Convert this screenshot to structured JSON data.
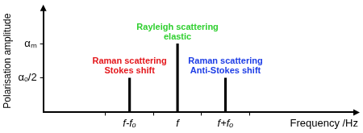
{
  "chart_data": {
    "type": "bar",
    "x_label": "Frequency /Hz",
    "y_label": "Polarisation amplitude",
    "x": [
      -1,
      0,
      1
    ],
    "values": [
      0.5,
      1,
      0.5
    ],
    "color": "#000000",
    "xlim": [
      -2.8,
      3.7
    ],
    "xticks": [
      {
        "value": -1,
        "label": "f-fₒ"
      },
      {
        "value": 0,
        "label": "f"
      },
      {
        "value": 1,
        "label": "f+fₒ"
      }
    ],
    "ylim": [
      0,
      1.5
    ],
    "yticks": [
      {
        "value": 0.5,
        "label": "αₒ/2"
      },
      {
        "value": 1,
        "label": "αₘ"
      }
    ],
    "grid": false,
    "annotations": [
      {
        "text": [
          "Raman scattering",
          "Stokes shift"
        ],
        "color": "#e4161b",
        "x": -1
      },
      {
        "text": [
          "Rayleigh scattering",
          "elastic"
        ],
        "color": "#2fcf2f",
        "x": 0
      },
      {
        "text": [
          "Raman scattering",
          "Anti-Stokes shift"
        ],
        "color": "#1c3ce6",
        "x": 1
      }
    ]
  }
}
